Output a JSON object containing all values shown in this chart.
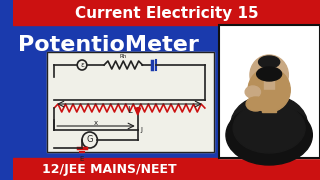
{
  "bg_blue": "#1a3aad",
  "bg_red": "#cc1111",
  "title_text": "Current Electricity 15",
  "title_color": "#ffffff",
  "subtitle_text": "PotentioMeter",
  "subtitle_color": "#ffffff",
  "bottom_text": "12/JEE MAINS/NEET",
  "bottom_color": "#ffffff",
  "circuit_bg": "#f0f0e8",
  "circuit_border": "#333333",
  "wire_color": "#222222",
  "resistor_color": "#cc1111",
  "battery_color": "#1a3aad",
  "galv_color": "#222222",
  "label_L": "L",
  "label_x": "x",
  "label_J": "J",
  "label_E": "E"
}
